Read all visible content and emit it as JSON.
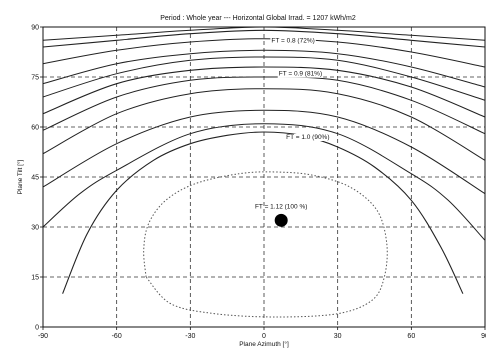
{
  "chart_data": {
    "type": "contour",
    "title": "Period : Whole year --- Horizontal Global Irrad. = 1207 kWh/m2",
    "xlabel": "Plane Azimuth [°]",
    "ylabel": "Plane Tilt [°]",
    "xlim": [
      -90,
      90
    ],
    "ylim": [
      0,
      90
    ],
    "xticks": [
      "-90",
      "-60",
      "-30",
      "0",
      "30",
      "60",
      "90"
    ],
    "yticks": [
      "0",
      "15",
      "30",
      "45",
      "60",
      "75",
      "90"
    ],
    "xtick_values": [
      -90,
      -60,
      -30,
      0,
      30,
      60,
      90
    ],
    "ytick_values": [
      0,
      15,
      30,
      45,
      60,
      75,
      90
    ],
    "grid": true,
    "optimum": {
      "azimuth": 7,
      "tilt": 32,
      "label": "FT = 1.12 (100 %)"
    },
    "labeled_contours": [
      {
        "label": "FT = 0.8 (72%)",
        "label_x": 3,
        "label_y": 86,
        "points": [
          [
            -90,
            84
          ],
          [
            -60,
            86
          ],
          [
            -30,
            88
          ],
          [
            0,
            89
          ],
          [
            30,
            88
          ],
          [
            60,
            86
          ],
          [
            90,
            84
          ]
        ]
      },
      {
        "label": "FT = 0.9 (81%)",
        "label_x": 6,
        "label_y": 76,
        "points": [
          [
            -90,
            64
          ],
          [
            -60,
            73
          ],
          [
            -30,
            77
          ],
          [
            0,
            78
          ],
          [
            30,
            77
          ],
          [
            60,
            72
          ],
          [
            90,
            63
          ]
        ]
      },
      {
        "label": "FT = 1.0 (90%)",
        "label_x": 9,
        "label_y": 57,
        "points": [
          [
            -82,
            10
          ],
          [
            -72,
            28
          ],
          [
            -60,
            41
          ],
          [
            -45,
            50
          ],
          [
            -30,
            55
          ],
          [
            -15,
            57.5
          ],
          [
            0,
            58.5
          ],
          [
            15,
            57.5
          ],
          [
            30,
            54
          ],
          [
            45,
            48
          ],
          [
            60,
            38
          ],
          [
            72,
            24
          ],
          [
            81,
            10
          ]
        ]
      }
    ],
    "unlabeled_contours": [
      {
        "points": [
          [
            -90,
            86
          ],
          [
            -60,
            87.5
          ],
          [
            -30,
            89
          ],
          [
            0,
            90
          ],
          [
            30,
            89
          ],
          [
            60,
            87.5
          ],
          [
            90,
            86
          ]
        ]
      },
      {
        "points": [
          [
            -90,
            79
          ],
          [
            -60,
            83
          ],
          [
            -30,
            85.5
          ],
          [
            0,
            86.5
          ],
          [
            30,
            85.5
          ],
          [
            60,
            82.5
          ],
          [
            90,
            78
          ]
        ]
      },
      {
        "points": [
          [
            -90,
            73
          ],
          [
            -60,
            79
          ],
          [
            -30,
            82
          ],
          [
            0,
            83
          ],
          [
            30,
            82
          ],
          [
            60,
            78
          ],
          [
            90,
            72
          ]
        ]
      },
      {
        "points": [
          [
            -90,
            69
          ],
          [
            -60,
            76
          ],
          [
            -30,
            80
          ],
          [
            0,
            81
          ],
          [
            30,
            80
          ],
          [
            60,
            75
          ],
          [
            90,
            68
          ]
        ]
      },
      {
        "points": [
          [
            -90,
            59
          ],
          [
            -60,
            69
          ],
          [
            -30,
            74
          ],
          [
            0,
            75
          ],
          [
            30,
            74
          ],
          [
            60,
            68
          ],
          [
            90,
            58
          ]
        ]
      },
      {
        "points": [
          [
            -90,
            52
          ],
          [
            -60,
            64
          ],
          [
            -30,
            70
          ],
          [
            0,
            71.5
          ],
          [
            30,
            70
          ],
          [
            60,
            63
          ],
          [
            90,
            50
          ]
        ]
      },
      {
        "points": [
          [
            -90,
            42
          ],
          [
            -60,
            55
          ],
          [
            -30,
            63
          ],
          [
            0,
            65
          ],
          [
            30,
            63
          ],
          [
            60,
            54
          ],
          [
            90,
            40
          ]
        ]
      },
      {
        "points": [
          [
            -90,
            30
          ],
          [
            -75,
            40
          ],
          [
            -60,
            47
          ],
          [
            -30,
            58
          ],
          [
            0,
            61
          ],
          [
            30,
            58
          ],
          [
            60,
            46
          ],
          [
            75,
            38
          ],
          [
            90,
            26
          ]
        ]
      }
    ],
    "optimum_contour_dotted": {
      "points": [
        [
          -48,
          15
        ],
        [
          -49,
          23
        ],
        [
          -47,
          31
        ],
        [
          -40,
          38
        ],
        [
          -28,
          43
        ],
        [
          -10,
          46
        ],
        [
          5,
          46.5
        ],
        [
          20,
          45.5
        ],
        [
          35,
          42
        ],
        [
          46,
          35
        ],
        [
          50,
          25
        ],
        [
          49,
          15
        ],
        [
          44,
          8
        ],
        [
          30,
          4
        ],
        [
          5,
          3
        ],
        [
          -20,
          4
        ],
        [
          -38,
          7
        ],
        [
          -48,
          15
        ]
      ]
    }
  }
}
